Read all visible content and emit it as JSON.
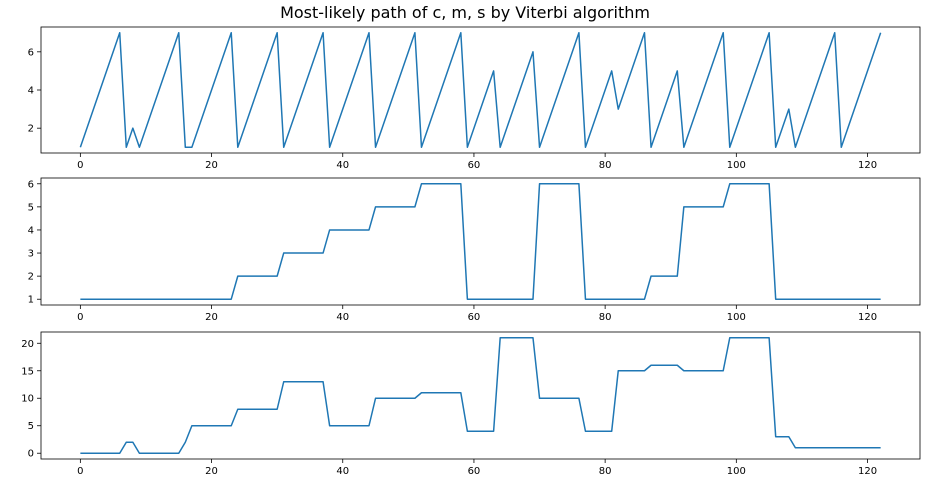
{
  "figure": {
    "title": "Most-likely path of c, m, s by Viterbi algorithm",
    "line_color": "#1f77b4"
  },
  "chart_data": [
    {
      "type": "line",
      "name": "c",
      "xlim": [
        -6,
        128
      ],
      "ylim": [
        0.7,
        7.3
      ],
      "xticks": [
        0,
        20,
        40,
        60,
        80,
        100,
        120
      ],
      "yticks": [
        2,
        4,
        6
      ],
      "series": [
        {
          "x": [
            0,
            6,
            7,
            8,
            9,
            15,
            16,
            17,
            23,
            24,
            30,
            31,
            37,
            38,
            44,
            45,
            51,
            52,
            58,
            59,
            63,
            64,
            69,
            70,
            76,
            77,
            81,
            82,
            86,
            87,
            91,
            92,
            98,
            99,
            105,
            106,
            108,
            109,
            115,
            116,
            122
          ],
          "y": [
            1,
            7,
            1,
            2,
            1,
            7,
            1,
            1,
            7,
            1,
            7,
            1,
            7,
            1,
            7,
            1,
            7,
            1,
            7,
            1,
            5,
            1,
            6,
            1,
            7,
            1,
            5,
            3,
            7,
            1,
            5,
            1,
            7,
            1,
            7,
            1,
            3,
            1,
            7,
            1,
            7
          ]
        }
      ]
    },
    {
      "type": "line",
      "name": "m",
      "xlim": [
        -6,
        128
      ],
      "ylim": [
        0.75,
        6.25
      ],
      "xticks": [
        0,
        20,
        40,
        60,
        80,
        100,
        120
      ],
      "yticks": [
        1,
        2,
        3,
        4,
        5,
        6
      ],
      "series": [
        {
          "x": [
            0,
            23,
            24,
            30,
            31,
            37,
            38,
            44,
            45,
            51,
            52,
            58,
            59,
            69,
            70,
            76,
            77,
            86,
            87,
            91,
            92,
            98,
            99,
            105,
            106,
            122
          ],
          "y": [
            1,
            1,
            2,
            2,
            3,
            3,
            4,
            4,
            5,
            5,
            6,
            6,
            1,
            1,
            6,
            6,
            1,
            1,
            2,
            2,
            5,
            5,
            6,
            6,
            1,
            1
          ]
        }
      ]
    },
    {
      "type": "line",
      "name": "s",
      "xlim": [
        -6,
        128
      ],
      "ylim": [
        -1.05,
        22.05
      ],
      "xticks": [
        0,
        20,
        40,
        60,
        80,
        100,
        120
      ],
      "yticks": [
        0,
        5,
        10,
        15,
        20
      ],
      "series": [
        {
          "x": [
            0,
            6,
            7,
            8,
            9,
            15,
            16,
            17,
            23,
            24,
            30,
            31,
            37,
            38,
            44,
            45,
            51,
            52,
            58,
            59,
            63,
            64,
            69,
            70,
            76,
            77,
            81,
            82,
            86,
            87,
            91,
            92,
            98,
            99,
            105,
            106,
            108,
            109,
            115,
            116,
            122
          ],
          "y": [
            0,
            0,
            2,
            2,
            0,
            0,
            2,
            5,
            5,
            8,
            8,
            13,
            13,
            5,
            5,
            10,
            10,
            11,
            11,
            4,
            4,
            21,
            21,
            10,
            10,
            4,
            4,
            15,
            15,
            16,
            16,
            15,
            15,
            21,
            21,
            3,
            3,
            1,
            1,
            1,
            1
          ]
        }
      ]
    }
  ]
}
